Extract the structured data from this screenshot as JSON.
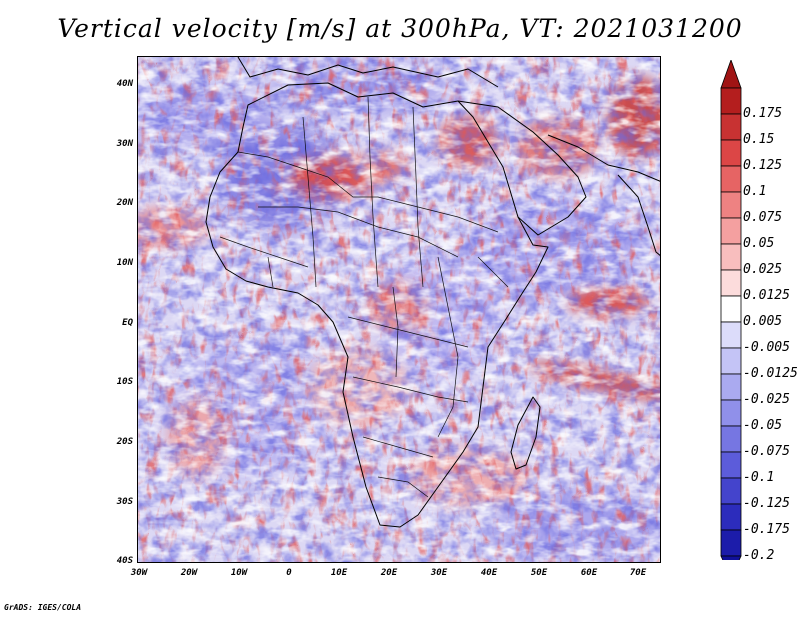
{
  "title": "Vertical velocity [m/s] at 300hPa, VT: 2021031200",
  "credit": "GrADS: IGES/COLA",
  "map": {
    "lon_range": [
      -30,
      75
    ],
    "lat_range": [
      -40,
      45
    ],
    "lat_ticks": [
      {
        "value": 40,
        "label": "40N"
      },
      {
        "value": 30,
        "label": "30N"
      },
      {
        "value": 20,
        "label": "20N"
      },
      {
        "value": 10,
        "label": "10N"
      },
      {
        "value": 0,
        "label": "EQ"
      },
      {
        "value": -10,
        "label": "10S"
      },
      {
        "value": -20,
        "label": "20S"
      },
      {
        "value": -30,
        "label": "30S"
      },
      {
        "value": -40,
        "label": "40S"
      }
    ],
    "lon_ticks": [
      {
        "value": -30,
        "label": "30W"
      },
      {
        "value": -20,
        "label": "20W"
      },
      {
        "value": -10,
        "label": "10W"
      },
      {
        "value": 0,
        "label": "0"
      },
      {
        "value": 10,
        "label": "10E"
      },
      {
        "value": 20,
        "label": "20E"
      },
      {
        "value": 30,
        "label": "30E"
      },
      {
        "value": 40,
        "label": "40E"
      },
      {
        "value": 50,
        "label": "50E"
      },
      {
        "value": 60,
        "label": "60E"
      },
      {
        "value": 70,
        "label": "70E"
      }
    ]
  },
  "colorbar": {
    "levels": [
      {
        "label": "0.175",
        "color": "#b41e1e"
      },
      {
        "label": "0.15",
        "color": "#c83232"
      },
      {
        "label": "0.125",
        "color": "#dc4646"
      },
      {
        "label": "0.1",
        "color": "#e66464"
      },
      {
        "label": "0.075",
        "color": "#ee8282"
      },
      {
        "label": "0.05",
        "color": "#f4a0a0"
      },
      {
        "label": "0.025",
        "color": "#f8bebe"
      },
      {
        "label": "0.0125",
        "color": "#fcdcdc"
      },
      {
        "label": "0.005",
        "color": "#ffffff"
      },
      {
        "label": "-0.005",
        "color": "#dcdcfa"
      },
      {
        "label": "-0.0125",
        "color": "#c4c4f6"
      },
      {
        "label": "-0.025",
        "color": "#aaaaf0"
      },
      {
        "label": "-0.05",
        "color": "#9090ea"
      },
      {
        "label": "-0.075",
        "color": "#7676e2"
      },
      {
        "label": "-0.1",
        "color": "#5c5cda"
      },
      {
        "label": "-0.125",
        "color": "#4444cc"
      },
      {
        "label": "-0.175",
        "color": "#2c2cbc"
      },
      {
        "label": "-0.2",
        "color": "#1c1caa"
      }
    ],
    "top_overflow_color": "#a01414",
    "bottom_overflow_color": "#10109a"
  }
}
